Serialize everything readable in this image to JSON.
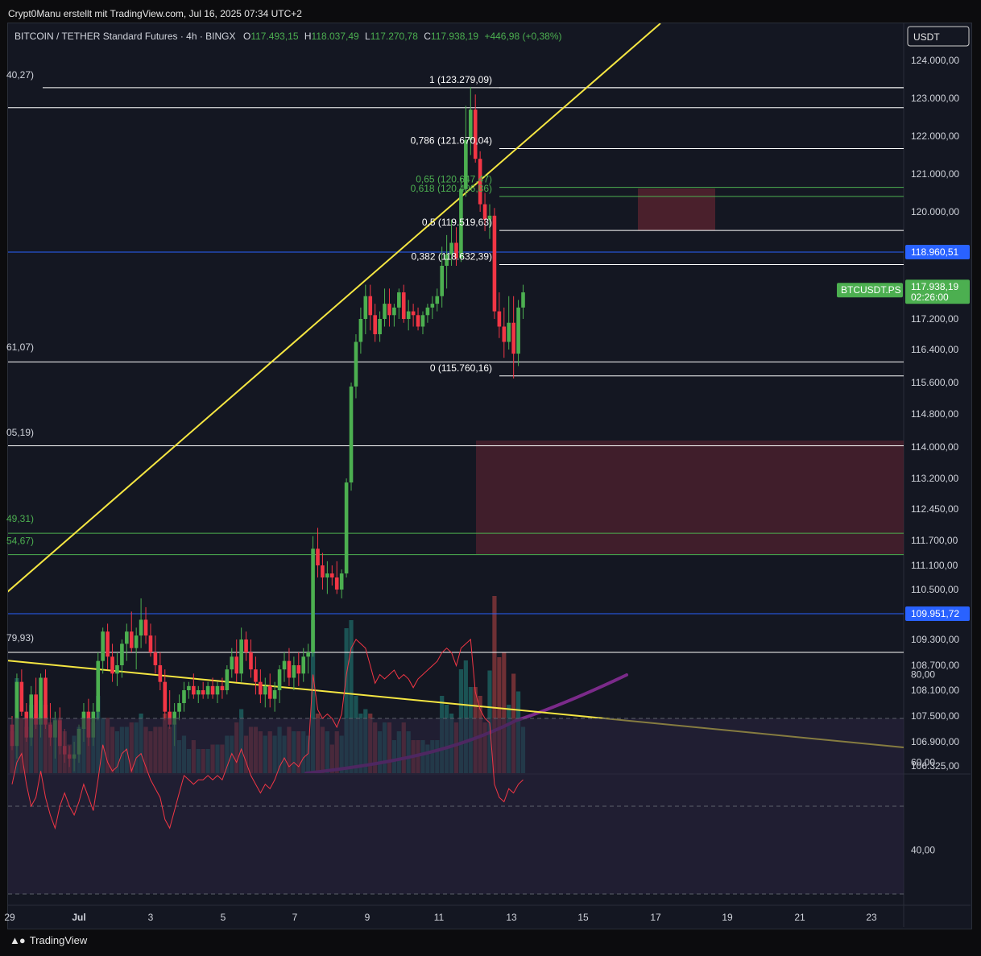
{
  "header": {
    "attribution": "Crypt0Manu erstellt mit TradingView.com, Jul 16, 2025 07:34 UTC+2",
    "symbol_line": "BITCOIN / TETHER Standard Futures · 4h · BINGX",
    "o_label": "O",
    "o_value": "117.493,15",
    "h_label": "H",
    "h_value": "118.037,49",
    "l_label": "L",
    "l_value": "117.270,78",
    "c_label": "C",
    "c_value": "117.938,19",
    "change": "+446,98 (+0,38%)",
    "currency": "USDT"
  },
  "footer": {
    "brand": "TradingView"
  },
  "colors": {
    "up": "#4caf50",
    "down": "#f23645",
    "fib": "#ffffff",
    "fib_green": "#4caf50",
    "trend": "#f5e642",
    "blue_line": "#2962ff",
    "zone": "#5c2430",
    "rsi": "#f23645",
    "ma": "#7b2a8a"
  },
  "chart_data": {
    "type": "candlestick",
    "y_axis_labels": [
      "124.000,00",
      "123.000,00",
      "122.000,00",
      "121.000,00",
      "120.000,00",
      "117.200,00",
      "116.400,00",
      "115.600,00",
      "114.800,00",
      "114.000,00",
      "113.200,00",
      "112.450,00",
      "111.700,00",
      "111.100,00",
      "110.500,00",
      "109.300,00",
      "108.700,00",
      "108.100,00",
      "107.500,00",
      "106.900,00",
      "106.325,00"
    ],
    "x_axis_labels": [
      "29",
      "Jul",
      "3",
      "5",
      "7",
      "9",
      "11",
      "13",
      "15",
      "17",
      "19",
      "21",
      "23"
    ],
    "price_tags": [
      {
        "value": "118.960,51",
        "kind": "blue"
      },
      {
        "value": "109.951,72",
        "kind": "blue"
      },
      {
        "value": "117.938,19",
        "sub": "02:26:00",
        "kind": "current",
        "symbol": "BTCUSDT.PS"
      }
    ],
    "fib_levels": [
      {
        "label": "1 (123.279,09)",
        "ratio": 1,
        "color": "white"
      },
      {
        "label": "0,786 (121.670,04)",
        "ratio": 0.786,
        "color": "white"
      },
      {
        "label": "0,65 (120.647,47)",
        "ratio": 0.65,
        "color": "green"
      },
      {
        "label": "0,618 (120.406,86)",
        "ratio": 0.618,
        "color": "green"
      },
      {
        "label": "0,5 (119.519,63)",
        "ratio": 0.5,
        "color": "white"
      },
      {
        "label": "0,382 (118.632,39)",
        "ratio": 0.382,
        "color": "white"
      },
      {
        "label": "0 (115.760,16)",
        "ratio": 0,
        "color": "white"
      }
    ],
    "left_fib_labels": [
      "40,27)",
      "61,07)",
      "05,19)",
      "49,31)",
      "54,67)",
      "79,93)"
    ],
    "rsi_axis_labels": [
      "80,00",
      "60,00",
      "40,00"
    ],
    "candles": [
      [
        107.3,
        107.5,
        106.7,
        106.8
      ],
      [
        106.8,
        108.5,
        106.5,
        108.3
      ],
      [
        108.3,
        108.6,
        107.5,
        107.6
      ],
      [
        107.6,
        107.8,
        106.9,
        107.0
      ],
      [
        107.0,
        108.2,
        106.8,
        108.0
      ],
      [
        108.0,
        108.4,
        107.2,
        107.3
      ],
      [
        107.3,
        108.5,
        107.0,
        108.4
      ],
      [
        108.4,
        108.6,
        107.2,
        107.3
      ],
      [
        107.3,
        107.8,
        106.8,
        107.0
      ],
      [
        107.0,
        107.6,
        106.5,
        107.4
      ],
      [
        107.4,
        107.7,
        106.6,
        106.8
      ],
      [
        106.8,
        107.2,
        106.4,
        106.6
      ],
      [
        106.6,
        106.8,
        106.3,
        106.5
      ],
      [
        106.5,
        106.9,
        106.2,
        106.6
      ],
      [
        106.6,
        107.3,
        106.4,
        107.2
      ],
      [
        107.2,
        107.8,
        106.9,
        107.6
      ],
      [
        107.6,
        107.9,
        106.8,
        107.0
      ],
      [
        107.0,
        107.8,
        106.8,
        107.6
      ],
      [
        107.6,
        109.0,
        107.4,
        108.8
      ],
      [
        108.8,
        109.6,
        108.5,
        109.5
      ],
      [
        109.5,
        109.7,
        108.6,
        108.9
      ],
      [
        108.9,
        109.2,
        108.3,
        108.5
      ],
      [
        108.5,
        109.0,
        108.2,
        108.7
      ],
      [
        108.7,
        109.3,
        108.4,
        109.2
      ],
      [
        109.2,
        109.7,
        108.8,
        109.5
      ],
      [
        109.5,
        110.0,
        109.0,
        109.1
      ],
      [
        109.1,
        109.6,
        108.6,
        109.4
      ],
      [
        109.4,
        110.3,
        109.1,
        109.8
      ],
      [
        109.8,
        110.1,
        109.2,
        109.4
      ],
      [
        109.4,
        109.7,
        108.9,
        109.0
      ],
      [
        109.0,
        109.4,
        108.5,
        108.7
      ],
      [
        108.7,
        109.0,
        108.1,
        108.3
      ],
      [
        108.3,
        108.6,
        107.4,
        107.6
      ],
      [
        107.6,
        108.1,
        107.2,
        107.3
      ],
      [
        107.3,
        107.8,
        106.8,
        107.6
      ],
      [
        107.6,
        108.0,
        107.4,
        107.8
      ],
      [
        107.8,
        108.3,
        107.6,
        108.1
      ],
      [
        108.1,
        108.3,
        107.9,
        108.2
      ],
      [
        108.2,
        108.5,
        107.9,
        108.0
      ],
      [
        108.0,
        108.2,
        107.8,
        108.1
      ],
      [
        108.1,
        108.3,
        107.9,
        108.0
      ],
      [
        108.0,
        108.3,
        107.9,
        108.2
      ],
      [
        108.2,
        108.4,
        107.9,
        108.0
      ],
      [
        108.0,
        108.3,
        107.8,
        108.2
      ],
      [
        108.2,
        108.4,
        107.9,
        108.1
      ],
      [
        108.1,
        108.7,
        108.0,
        108.6
      ],
      [
        108.6,
        109.1,
        108.4,
        108.9
      ],
      [
        108.9,
        109.3,
        108.3,
        108.5
      ],
      [
        108.5,
        109.6,
        108.3,
        109.3
      ],
      [
        109.3,
        109.5,
        108.8,
        109.0
      ],
      [
        109.0,
        109.3,
        108.4,
        108.6
      ],
      [
        108.6,
        108.9,
        108.0,
        108.3
      ],
      [
        108.3,
        108.6,
        107.8,
        108.0
      ],
      [
        108.0,
        108.4,
        107.7,
        108.2
      ],
      [
        108.2,
        108.5,
        107.7,
        107.9
      ],
      [
        107.9,
        108.3,
        107.6,
        108.1
      ],
      [
        108.1,
        108.7,
        107.8,
        108.6
      ],
      [
        108.6,
        109.0,
        108.3,
        108.8
      ],
      [
        108.8,
        109.1,
        108.2,
        108.4
      ],
      [
        108.4,
        108.9,
        108.1,
        108.7
      ],
      [
        108.7,
        109.0,
        108.2,
        108.5
      ],
      [
        108.5,
        109.1,
        108.3,
        108.9
      ],
      [
        108.9,
        109.2,
        108.5,
        109.0
      ],
      [
        109.0,
        111.8,
        108.9,
        111.5
      ],
      [
        111.5,
        112.0,
        110.8,
        111.1
      ],
      [
        111.1,
        111.4,
        110.5,
        110.8
      ],
      [
        110.8,
        111.2,
        110.4,
        110.9
      ],
      [
        110.9,
        111.1,
        110.6,
        110.8
      ],
      [
        110.8,
        111.2,
        110.4,
        110.5
      ],
      [
        110.5,
        111.0,
        110.3,
        110.9
      ],
      [
        110.9,
        113.2,
        110.8,
        113.1
      ],
      [
        113.1,
        115.6,
        112.9,
        115.5
      ],
      [
        115.5,
        116.8,
        115.2,
        116.6
      ],
      [
        116.6,
        117.5,
        116.3,
        117.2
      ],
      [
        117.2,
        118.1,
        116.8,
        117.8
      ],
      [
        117.8,
        118.1,
        116.9,
        117.3
      ],
      [
        117.3,
        117.6,
        116.6,
        116.8
      ],
      [
        116.8,
        117.4,
        116.6,
        117.2
      ],
      [
        117.2,
        118.0,
        117.0,
        117.6
      ],
      [
        117.6,
        118.0,
        117.0,
        117.3
      ],
      [
        117.3,
        117.6,
        117.0,
        117.5
      ],
      [
        117.5,
        118.0,
        117.2,
        117.9
      ],
      [
        117.9,
        118.1,
        117.1,
        117.2
      ],
      [
        117.2,
        117.7,
        116.9,
        117.4
      ],
      [
        117.4,
        117.6,
        117.0,
        117.3
      ],
      [
        117.3,
        117.5,
        116.9,
        117.0
      ],
      [
        117.0,
        117.4,
        116.8,
        117.3
      ],
      [
        117.3,
        117.6,
        117.1,
        117.5
      ],
      [
        117.5,
        117.8,
        117.2,
        117.6
      ],
      [
        117.6,
        118.0,
        117.4,
        117.8
      ],
      [
        117.8,
        119.1,
        117.5,
        118.6
      ],
      [
        118.6,
        119.4,
        118.0,
        118.9
      ],
      [
        118.9,
        119.8,
        118.6,
        119.2
      ],
      [
        119.2,
        119.6,
        118.6,
        118.8
      ],
      [
        118.8,
        120.9,
        118.7,
        120.6
      ],
      [
        120.6,
        122.8,
        120.4,
        121.9
      ],
      [
        121.9,
        123.3,
        121.5,
        122.7
      ],
      [
        122.7,
        123.1,
        121.3,
        121.4
      ],
      [
        121.4,
        121.6,
        120.0,
        120.2
      ],
      [
        120.2,
        120.5,
        119.5,
        119.8
      ],
      [
        119.8,
        120.2,
        119.3,
        119.9
      ],
      [
        119.9,
        120.1,
        117.2,
        117.4
      ],
      [
        117.4,
        117.9,
        116.7,
        117.0
      ],
      [
        117.0,
        117.5,
        116.2,
        116.6
      ],
      [
        116.6,
        117.8,
        116.4,
        117.1
      ],
      [
        117.1,
        117.8,
        115.7,
        116.3
      ],
      [
        116.3,
        117.7,
        116.0,
        117.5
      ],
      [
        117.5,
        118.1,
        117.2,
        117.9
      ]
    ]
  }
}
